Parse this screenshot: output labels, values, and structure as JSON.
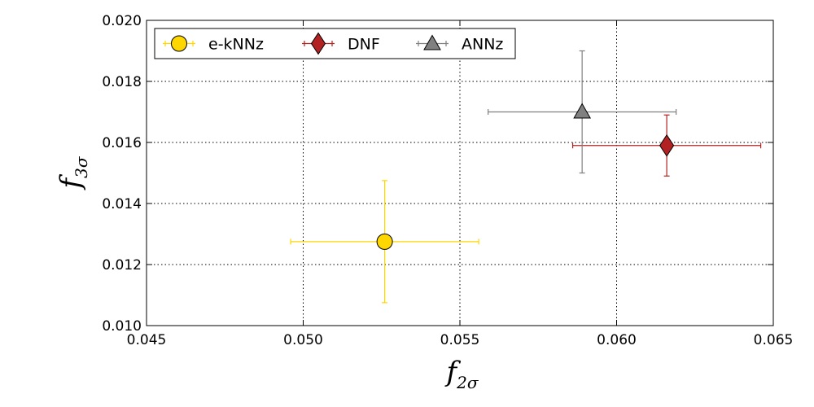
{
  "chart_data": {
    "type": "scatter",
    "title": "",
    "xlabel": {
      "base": "f",
      "sub": "2σ"
    },
    "ylabel": {
      "base": "f",
      "sub": "3σ"
    },
    "xlim": [
      0.045,
      0.065
    ],
    "ylim": [
      0.01,
      0.02
    ],
    "xticks": [
      0.045,
      0.05,
      0.055,
      0.06,
      0.065
    ],
    "yticks": [
      0.01,
      0.012,
      0.014,
      0.016,
      0.018,
      0.02
    ],
    "xtick_labels": [
      "0.045",
      "0.050",
      "0.055",
      "0.060",
      "0.065"
    ],
    "ytick_labels": [
      "0.010",
      "0.012",
      "0.014",
      "0.016",
      "0.018",
      "0.020"
    ],
    "grid": true,
    "legend_position": "top-left",
    "series": [
      {
        "name": "e-kNNz",
        "marker": "circle",
        "color": "#FFD700",
        "x": 0.0526,
        "y": 0.01275,
        "xerr": 0.003,
        "yerr": 0.002
      },
      {
        "name": "DNF",
        "marker": "diamond",
        "color": "#B22222",
        "x": 0.0616,
        "y": 0.0159,
        "xerr": 0.003,
        "yerr": 0.001
      },
      {
        "name": "ANNz",
        "marker": "triangle",
        "color": "#808080",
        "x": 0.0589,
        "y": 0.017,
        "xerr": 0.003,
        "yerr": 0.002
      }
    ]
  }
}
